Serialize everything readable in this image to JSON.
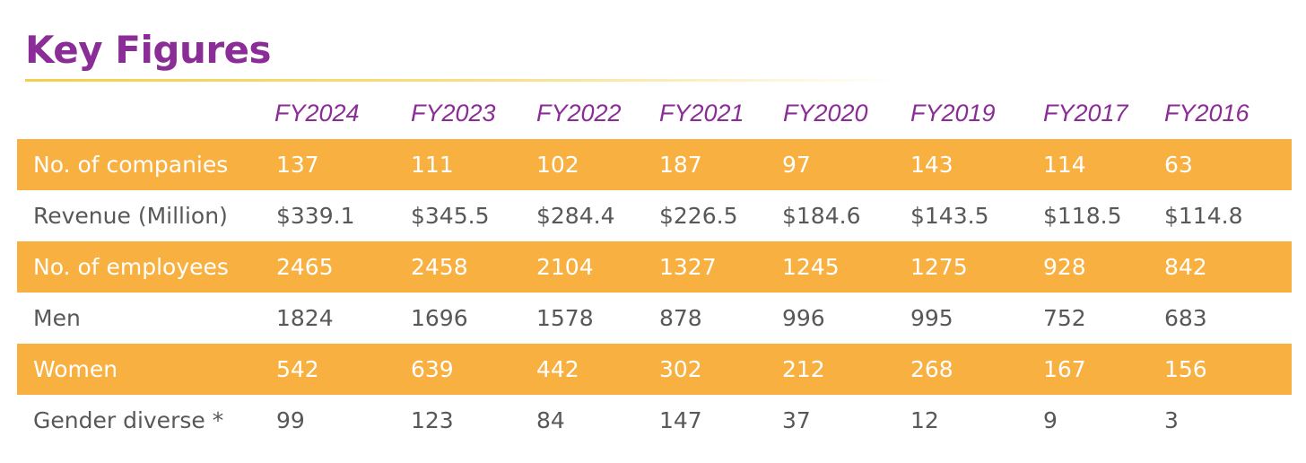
{
  "title": "Key Figures",
  "years": [
    "FY2024",
    "FY2023",
    "FY2022",
    "FY2021",
    "FY2020",
    "FY2019",
    "FY2017",
    "FY2016"
  ],
  "rows": [
    {
      "label": "No. of companies",
      "values": [
        "137",
        "111",
        "102",
        "187",
        "97",
        "143",
        "114",
        "63"
      ]
    },
    {
      "label": "Revenue (Million)",
      "values": [
        "$339.1",
        "$345.5",
        "$284.4",
        "$226.5",
        "$184.6",
        "$143.5",
        "$118.5",
        "$114.8"
      ]
    },
    {
      "label": "No. of employees",
      "values": [
        "2465",
        "2458",
        "2104",
        "1327",
        "1245",
        "1275",
        "928",
        "842"
      ]
    },
    {
      "label": "Men",
      "values": [
        "1824",
        "1696",
        "1578",
        "878",
        "996",
        "995",
        "752",
        "683"
      ]
    },
    {
      "label": "Women",
      "values": [
        "542",
        "639",
        "442",
        "302",
        "212",
        "268",
        "167",
        "156"
      ]
    },
    {
      "label": "Gender diverse *",
      "values": [
        "99",
        "123",
        "84",
        "147",
        "37",
        "12",
        "9",
        "3"
      ]
    }
  ],
  "colors": {
    "title": "#8b2d96",
    "band": "#f8b040",
    "band_text": "#ffffff",
    "plain_text": "#58585b"
  }
}
